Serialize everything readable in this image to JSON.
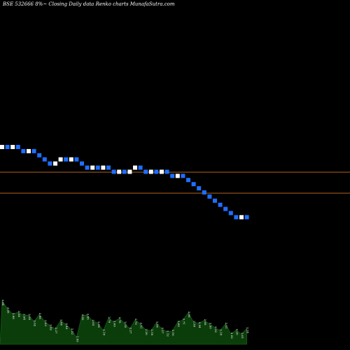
{
  "chart_data": {
    "type": "renko",
    "title": "BSE 532666  8%~   Closing Daily data  Renko  charts MunafaSutra.com",
    "background": "#000000",
    "colors": {
      "up_brick": "#ffffff",
      "down_brick": "#1e6fff",
      "level_line": "#b5651d",
      "volume": "#0b3d0b"
    },
    "bricks": [
      "u",
      "d",
      "u",
      "d",
      "d",
      "u",
      "d",
      "d",
      "d",
      "d",
      "u",
      "u",
      "d",
      "u",
      "d",
      "d",
      "d",
      "u",
      "d",
      "u",
      "d",
      "d",
      "u",
      "d",
      "u",
      "u",
      "d",
      "d",
      "u",
      "d",
      "u",
      "d",
      "d",
      "u",
      "d",
      "d",
      "d",
      "d",
      "d",
      "d",
      "d",
      "d",
      "d",
      "d",
      "d",
      "u",
      "d"
    ],
    "level_lines": [
      1,
      2
    ],
    "volume": {
      "values": [
        3.64,
        3.26,
        2.98,
        3.08,
        2.94,
        2.93,
        2.62,
        2.98,
        2.63,
        2.42,
        2.27,
        2.66,
        2.48,
        2.22,
        1.85,
        2.92,
        2.95,
        2.65,
        2.56,
        2.18,
        2.79,
        2.6,
        2.78,
        2.55,
        2.27,
        2.7,
        2.51,
        2.2,
        2.18,
        2.56,
        2.27,
        2.12,
        2.16,
        2.6,
        2.71,
        3.06,
        2.59,
        2.54,
        2.68,
        2.5,
        2.32,
        2.18,
        2.51,
        2.02,
        2.2,
        2.01,
        2.28
      ],
      "labels": [
        "3.64",
        "3.26",
        "2.98",
        "3.08",
        "2.94",
        "2.93",
        "2.62",
        "2.98",
        "2.63",
        "2.42",
        "2.27",
        "2.66",
        "2.48",
        "2.22",
        "1.85",
        "2.92",
        "2.95",
        "2.65",
        "2.56",
        "2.18",
        "2.79",
        "2.60",
        "2.78",
        "2.55",
        "2.27",
        "2.70",
        "2.51",
        "2.20",
        "2.18",
        "2.56",
        "2.27",
        "2.12",
        "2.16",
        "2.60",
        "2.71",
        "3.06",
        "2.59",
        "2.54",
        "2.68",
        "2.50",
        "2.32",
        "2.18",
        "2.51",
        "2.02",
        "2.20",
        "2.01",
        "2.28"
      ]
    }
  }
}
